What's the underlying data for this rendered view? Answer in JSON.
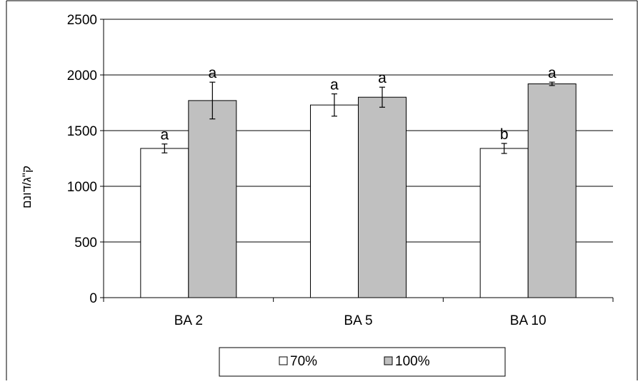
{
  "chart_data": {
    "type": "bar",
    "title": "",
    "xlabel": "",
    "ylabel": "ק\"ג/דונם",
    "ylim": [
      0,
      2500
    ],
    "yticks": [
      0,
      500,
      1000,
      1500,
      2000,
      2500
    ],
    "grid": true,
    "legend_position": "bottom",
    "categories": [
      "BA 2",
      "BA 5",
      "BA 10"
    ],
    "series": [
      {
        "name": "70%",
        "color": "#ffffff",
        "values": [
          1340,
          1730,
          1340
        ],
        "errors": [
          40,
          100,
          45
        ],
        "labels": [
          "a",
          "a",
          "b"
        ]
      },
      {
        "name": "100%",
        "color": "#c0c0c0",
        "values": [
          1770,
          1800,
          1920
        ],
        "errors": [
          165,
          90,
          15
        ],
        "labels": [
          "a",
          "a",
          "a"
        ]
      }
    ]
  }
}
